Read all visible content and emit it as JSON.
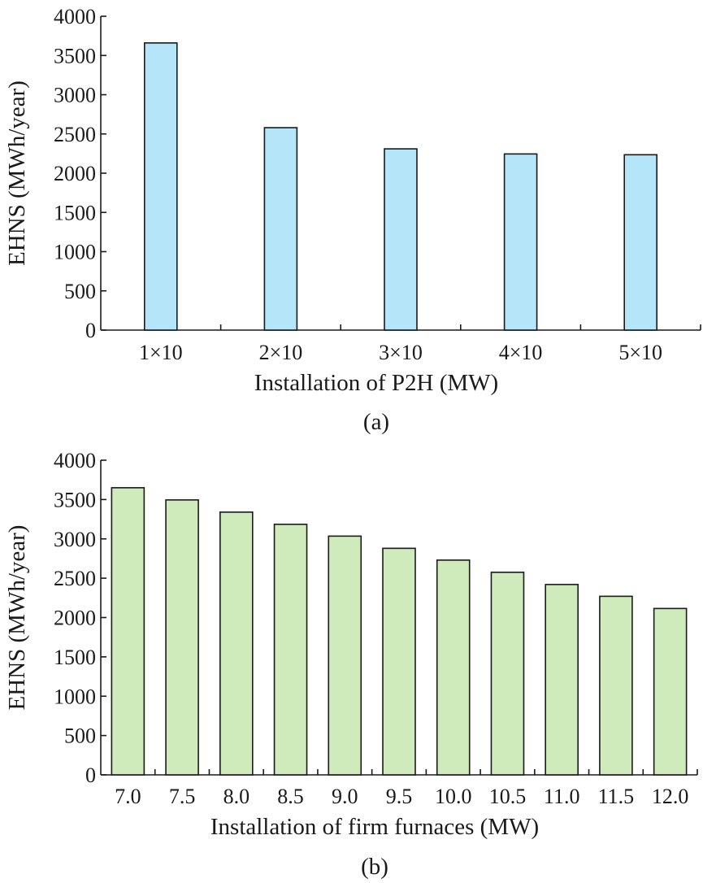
{
  "chart_data": [
    {
      "type": "bar",
      "panel_label": "(a)",
      "xlabel": "Installation of P2H (MW)",
      "ylabel": "EHNS (MWh/year)",
      "categories": [
        "1×10",
        "2×10",
        "3×10",
        "4×10",
        "5×10"
      ],
      "values": [
        3660,
        2580,
        2310,
        2245,
        2235
      ],
      "ylim": [
        0,
        4000
      ],
      "yticks": [
        0,
        500,
        1000,
        1500,
        2000,
        2500,
        3000,
        3500,
        4000
      ],
      "bar_color": "#b5e5f8",
      "grid": false
    },
    {
      "type": "bar",
      "panel_label": "(b)",
      "xlabel": "Installation of firm furnaces (MW)",
      "ylabel": "EHNS (MWh/year)",
      "categories": [
        "7.0",
        "7.5",
        "8.0",
        "8.5",
        "9.0",
        "9.5",
        "10.0",
        "10.5",
        "11.0",
        "11.5",
        "12.0"
      ],
      "values": [
        3650,
        3495,
        3340,
        3185,
        3035,
        2880,
        2730,
        2575,
        2420,
        2270,
        2115
      ],
      "ylim": [
        0,
        4000
      ],
      "yticks": [
        0,
        500,
        1000,
        1500,
        2000,
        2500,
        3000,
        3500,
        4000
      ],
      "bar_color": "#cfeabb",
      "grid": false
    }
  ]
}
